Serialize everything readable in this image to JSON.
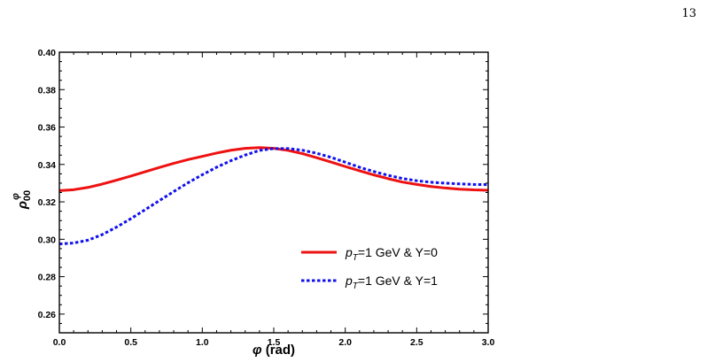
{
  "page": {
    "number": "13"
  },
  "chart_data": {
    "type": "line",
    "xlabel": "φ (rad)",
    "ylabel": "ρ00φ",
    "ylabel_parts": {
      "symbol": "ρ",
      "subscript": "00",
      "superscript": "φ"
    },
    "xlim": [
      0.0,
      3.0
    ],
    "ylim": [
      0.25,
      0.4
    ],
    "x_ticks": [
      "0.0",
      "0.5",
      "1.0",
      "1.5",
      "2.0",
      "2.5",
      "3.0"
    ],
    "y_ticks": [
      "0.26",
      "0.28",
      "0.30",
      "0.32",
      "0.34",
      "0.36",
      "0.38",
      "0.40"
    ],
    "legend_placement": "lower-right",
    "grid": false,
    "series": [
      {
        "name": "pT=1 GeV & Y=0",
        "name_parts": {
          "p": "p",
          "sub": "T",
          "rest": "=1 GeV & Y=0"
        },
        "color": "#ee1111",
        "style": "solid",
        "x": [
          0.0,
          0.1,
          0.2,
          0.3,
          0.4,
          0.5,
          0.6,
          0.7,
          0.8,
          0.9,
          1.0,
          1.1,
          1.2,
          1.3,
          1.4,
          1.5,
          1.6,
          1.7,
          1.8,
          1.9,
          2.0,
          2.1,
          2.2,
          2.3,
          2.4,
          2.5,
          2.6,
          2.7,
          2.8,
          2.9,
          3.0
        ],
        "y": [
          0.326,
          0.3265,
          0.3277,
          0.3295,
          0.3316,
          0.3338,
          0.3361,
          0.3384,
          0.3406,
          0.3426,
          0.3443,
          0.3461,
          0.3476,
          0.3486,
          0.349,
          0.3486,
          0.3475,
          0.3458,
          0.3436,
          0.3413,
          0.3389,
          0.3366,
          0.3344,
          0.3324,
          0.3306,
          0.3293,
          0.3282,
          0.3274,
          0.3268,
          0.3264,
          0.3262
        ]
      },
      {
        "name": "pT=1 GeV & Y=1",
        "name_parts": {
          "p": "p",
          "sub": "T",
          "rest": "=1 GeV & Y=1"
        },
        "color": "#1111ee",
        "style": "dotted",
        "x": [
          0.0,
          0.1,
          0.2,
          0.3,
          0.4,
          0.5,
          0.6,
          0.7,
          0.8,
          0.9,
          1.0,
          1.1,
          1.2,
          1.3,
          1.4,
          1.5,
          1.6,
          1.7,
          1.8,
          1.9,
          2.0,
          2.1,
          2.2,
          2.3,
          2.4,
          2.5,
          2.6,
          2.7,
          2.8,
          2.9,
          3.0
        ],
        "y": [
          0.2975,
          0.298,
          0.2995,
          0.3025,
          0.3065,
          0.311,
          0.3158,
          0.3207,
          0.3255,
          0.3302,
          0.3345,
          0.3385,
          0.342,
          0.345,
          0.3475,
          0.3485,
          0.3485,
          0.3476,
          0.346,
          0.3438,
          0.3412,
          0.3385,
          0.3362,
          0.3342,
          0.3325,
          0.3313,
          0.3305,
          0.33,
          0.3296,
          0.3293,
          0.3292
        ]
      }
    ]
  }
}
